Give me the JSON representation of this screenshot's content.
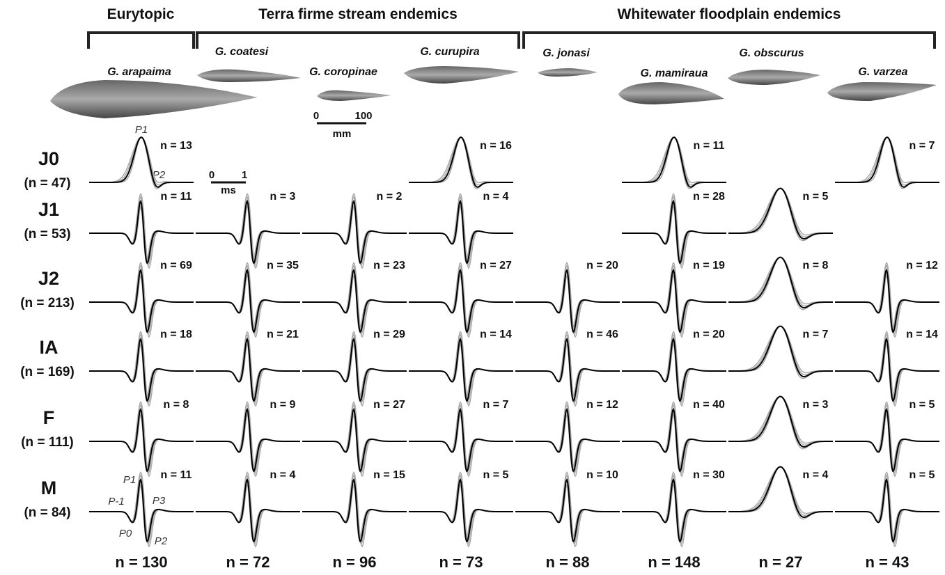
{
  "groups": [
    "Eurytopic",
    "Terra firme stream endemics",
    "Whitewater floodplain endemics"
  ],
  "species": [
    "G. arapaima",
    "G. coatesi",
    "G. coropinae",
    "G. curupira",
    "G. jonasi",
    "G. mamiraua",
    "G. obscurus",
    "G. varzea"
  ],
  "length_scale": {
    "start": "0",
    "end": "100",
    "unit": "mm"
  },
  "time_scale": {
    "start": "0",
    "end": "1",
    "unit": "ms"
  },
  "peak_labels": {
    "j0": [
      "P1",
      "P2"
    ],
    "m": [
      "P1",
      "P-1",
      "P3",
      "P0",
      "P2"
    ]
  },
  "rows": [
    {
      "label": "J0",
      "total": "(n = 47)",
      "cells": [
        "n = 13",
        null,
        null,
        "n = 16",
        null,
        "n = 11",
        null,
        "n = 7"
      ]
    },
    {
      "label": "J1",
      "total": "(n = 53)",
      "cells": [
        "n = 11",
        "n = 3",
        "n = 2",
        "n = 4",
        null,
        "n = 28",
        "n = 5",
        null
      ]
    },
    {
      "label": "J2",
      "total": "(n = 213)",
      "cells": [
        "n = 69",
        "n = 35",
        "n = 23",
        "n = 27",
        "n = 20",
        "n = 19",
        "n = 8",
        "n = 12"
      ]
    },
    {
      "label": "IA",
      "total": "(n = 169)",
      "cells": [
        "n = 18",
        "n = 21",
        "n = 29",
        "n = 14",
        "n = 46",
        "n = 20",
        "n = 7",
        "n = 14"
      ]
    },
    {
      "label": "F",
      "total": "(n = 111)",
      "cells": [
        "n = 8",
        "n = 9",
        "n = 27",
        "n = 7",
        "n = 12",
        "n = 40",
        "n = 3",
        "n = 5"
      ]
    },
    {
      "label": "M",
      "total": "(n = 84)",
      "cells": [
        "n = 11",
        "n = 4",
        "n = 15",
        "n = 5",
        "n = 10",
        "n = 30",
        "n = 4",
        "n = 5"
      ]
    }
  ],
  "column_totals": [
    "n = 130",
    "n = 72",
    "n = 96",
    "n = 73",
    "n = 88",
    "n = 148",
    "n = 27",
    "n = 43"
  ]
}
